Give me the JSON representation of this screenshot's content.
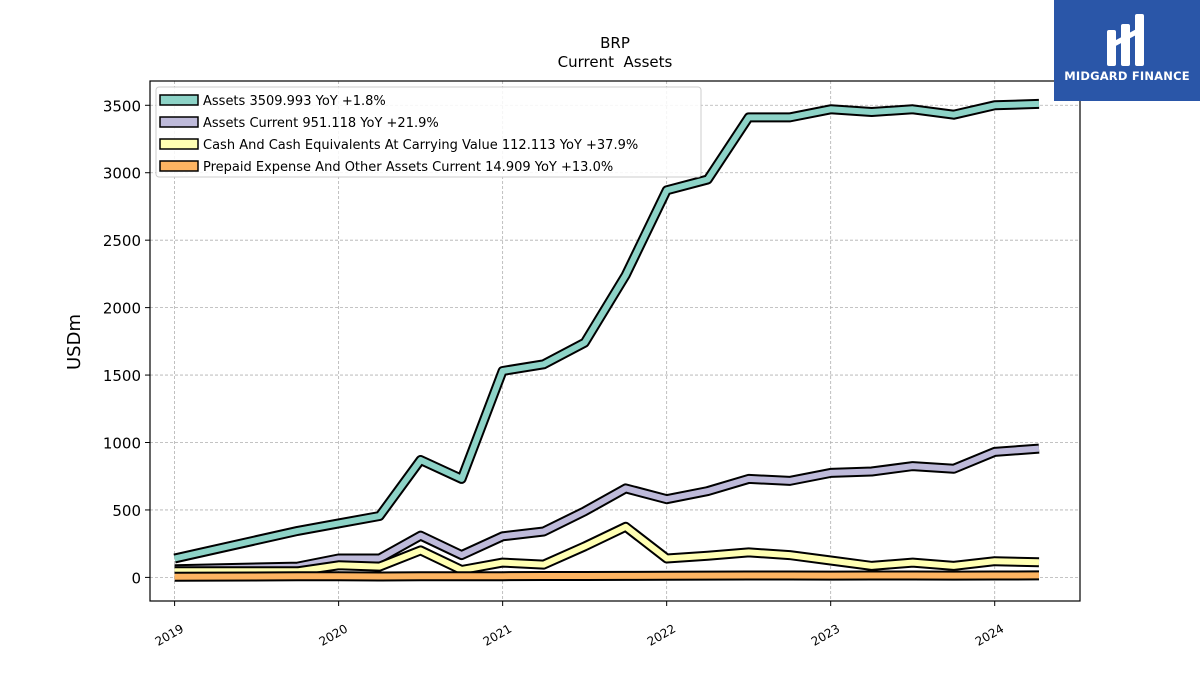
{
  "logo": {
    "text": "MIDGARD FINANCE"
  },
  "chart_data": {
    "type": "line",
    "title": "BRP",
    "subtitle": "Current  Assets",
    "xlabel": "",
    "ylabel": "USDm",
    "xlim": [
      2018.85,
      2024.52
    ],
    "ylim": [
      -175,
      3680
    ],
    "x_ticks": [
      {
        "value": 2019,
        "label": "2019"
      },
      {
        "value": 2020,
        "label": "2020"
      },
      {
        "value": 2021,
        "label": "2021"
      },
      {
        "value": 2022,
        "label": "2022"
      },
      {
        "value": 2023,
        "label": "2023"
      },
      {
        "value": 2024,
        "label": "2024"
      }
    ],
    "y_ticks": [
      {
        "value": 0,
        "label": "0"
      },
      {
        "value": 500,
        "label": "500"
      },
      {
        "value": 1000,
        "label": "1000"
      },
      {
        "value": 1500,
        "label": "1500"
      },
      {
        "value": 2000,
        "label": "2000"
      },
      {
        "value": 2500,
        "label": "2500"
      },
      {
        "value": 3000,
        "label": "3000"
      },
      {
        "value": 3500,
        "label": "3500"
      }
    ],
    "grid": true,
    "legend_position": "top-left",
    "series": [
      {
        "name": "Assets  3509.993 YoY +1.8%",
        "color": "#8dd3c7",
        "x": [
          2019.0,
          2019.75,
          2020.0,
          2020.25,
          2020.5,
          2020.75,
          2021.0,
          2021.25,
          2021.5,
          2021.75,
          2022.0,
          2022.25,
          2022.5,
          2022.75,
          2023.0,
          2023.25,
          2023.5,
          2023.75,
          2024.0,
          2024.27
        ],
        "y": [
          140,
          345,
          400,
          455,
          870,
          730,
          1530,
          1580,
          1740,
          2240,
          2870,
          2950,
          3410,
          3410,
          3470,
          3450,
          3470,
          3430,
          3500,
          3510
        ]
      },
      {
        "name": "Assets Current  951.118 YoY +21.9%",
        "color": "#bebada",
        "x": [
          2019.0,
          2019.75,
          2020.0,
          2020.25,
          2020.5,
          2020.75,
          2021.0,
          2021.25,
          2021.5,
          2021.75,
          2022.0,
          2022.25,
          2022.5,
          2022.75,
          2023.0,
          2023.25,
          2023.5,
          2023.75,
          2024.0,
          2024.27
        ],
        "y": [
          60,
          80,
          140,
          140,
          310,
          165,
          305,
          340,
          490,
          660,
          580,
          640,
          730,
          715,
          775,
          785,
          825,
          805,
          930,
          955
        ]
      },
      {
        "name": "Cash And Cash Equivalents At Carrying Value  112.113 YoY +37.9%",
        "color": "#ffffb3",
        "x": [
          2019.0,
          2019.75,
          2020.0,
          2020.25,
          2020.5,
          2020.75,
          2021.0,
          2021.25,
          2021.5,
          2021.75,
          2022.0,
          2022.25,
          2022.5,
          2022.75,
          2023.0,
          2023.25,
          2023.5,
          2023.75,
          2024.0,
          2024.27
        ],
        "y": [
          45,
          45,
          90,
          80,
          200,
          55,
          110,
          95,
          230,
          375,
          140,
          160,
          185,
          165,
          125,
          85,
          110,
          85,
          120,
          112
        ]
      },
      {
        "name": "Prepaid Expense And Other Assets Current  14.909 YoY +13.0%",
        "color": "#fdb462",
        "x": [
          2019.0,
          2019.75,
          2020.0,
          2020.25,
          2020.5,
          2020.75,
          2021.0,
          2021.25,
          2021.5,
          2021.75,
          2022.0,
          2022.25,
          2022.5,
          2022.75,
          2023.0,
          2023.25,
          2023.5,
          2023.75,
          2024.0,
          2024.27
        ],
        "y": [
          5,
          8,
          8,
          7,
          8,
          8,
          9,
          10,
          10,
          11,
          12,
          13,
          14,
          14,
          13,
          14,
          14,
          13,
          14,
          15
        ]
      }
    ]
  }
}
